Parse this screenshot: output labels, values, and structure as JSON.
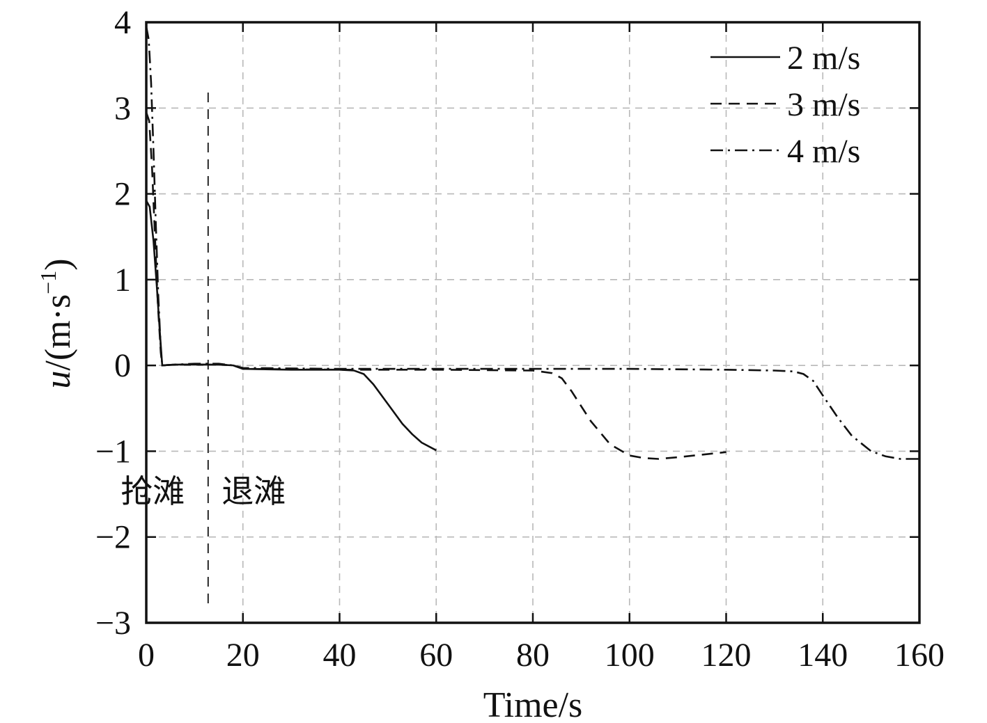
{
  "chart_data": {
    "type": "line",
    "xlabel": "Time/s",
    "ylabel_main": "u",
    "ylabel_unit": "/(m·s",
    "ylabel_exp": "−1",
    "ylabel_close": ")",
    "xlim": [
      0,
      160
    ],
    "ylim": [
      -3,
      4
    ],
    "xticks": [
      0,
      20,
      40,
      60,
      80,
      100,
      120,
      140,
      160
    ],
    "xtick_labels": [
      "0",
      "20",
      "40",
      "60",
      "80",
      "100",
      "120",
      "140",
      "160"
    ],
    "yticks": [
      -3,
      -2,
      -1,
      0,
      1,
      2,
      3,
      4
    ],
    "ytick_labels": [
      "−3",
      "−2",
      "−1",
      "0",
      "1",
      "2",
      "3",
      "4"
    ],
    "grid": true,
    "legend_position": "top-right",
    "divider_x": 12.8,
    "annotations": [
      {
        "text": "抢滩",
        "x": -5.3,
        "y": -1.45
      },
      {
        "text": "退滩",
        "x": 15.6,
        "y": -1.45
      }
    ],
    "series": [
      {
        "name": "2 m/s",
        "style": "solid",
        "x": [
          0,
          0.7,
          1.5,
          2.2,
          2.8,
          3.3,
          6,
          10,
          15,
          18,
          20,
          30,
          40,
          43,
          45,
          47,
          50,
          53,
          55,
          57,
          60
        ],
        "y": [
          1.92,
          1.85,
          1.45,
          0.9,
          0.4,
          0.0,
          0.01,
          0.01,
          0.01,
          0.0,
          -0.04,
          -0.05,
          -0.05,
          -0.06,
          -0.1,
          -0.22,
          -0.45,
          -0.68,
          -0.8,
          -0.9,
          -0.99
        ]
      },
      {
        "name": "3 m/s",
        "style": "dashed",
        "x": [
          0,
          0.6,
          1.2,
          1.8,
          2.4,
          3.0,
          3.3,
          6,
          10,
          15,
          18,
          20,
          40,
          60,
          80,
          84,
          86,
          88,
          92,
          96,
          100,
          103,
          106,
          110,
          115,
          120
        ],
        "y": [
          2.95,
          2.85,
          2.3,
          1.5,
          0.7,
          0.15,
          0.0,
          0.01,
          0.01,
          0.01,
          0.0,
          -0.04,
          -0.05,
          -0.05,
          -0.06,
          -0.09,
          -0.15,
          -0.3,
          -0.65,
          -0.92,
          -1.05,
          -1.08,
          -1.09,
          -1.07,
          -1.04,
          -1.01
        ]
      },
      {
        "name": "4 m/s",
        "style": "dashdot",
        "x": [
          0,
          0.5,
          1.0,
          1.5,
          2.0,
          2.5,
          3.0,
          3.3,
          6,
          10,
          15,
          18,
          20,
          40,
          60,
          80,
          100,
          120,
          130,
          134,
          136,
          138,
          140,
          143,
          146,
          150,
          153,
          156,
          160
        ],
        "y": [
          3.95,
          3.8,
          3.3,
          2.5,
          1.6,
          0.8,
          0.2,
          0.0,
          0.01,
          0.02,
          0.02,
          0.0,
          -0.03,
          -0.04,
          -0.04,
          -0.04,
          -0.04,
          -0.05,
          -0.06,
          -0.07,
          -0.1,
          -0.18,
          -0.35,
          -0.6,
          -0.82,
          -1.0,
          -1.06,
          -1.09,
          -1.09
        ]
      }
    ]
  }
}
